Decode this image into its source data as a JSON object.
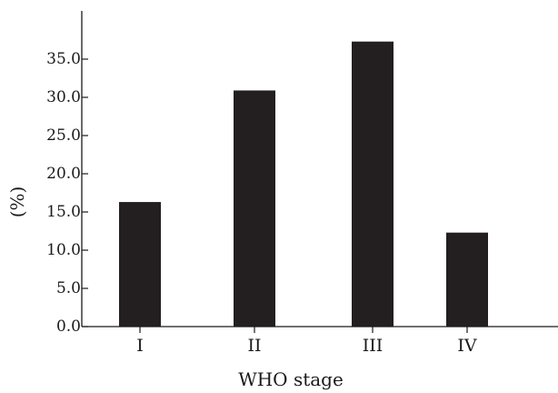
{
  "chart_data": {
    "type": "bar",
    "title": "",
    "xlabel": "WHO stage",
    "ylabel": "(%)",
    "categories": [
      "I",
      "II",
      "III",
      "IV"
    ],
    "values": [
      16.3,
      30.9,
      37.3,
      12.3
    ],
    "ylim": [
      0,
      40
    ],
    "yticks": [
      {
        "value": 0,
        "label": "0.0"
      },
      {
        "value": 5,
        "label": "5.0"
      },
      {
        "value": 10,
        "label": "10.0"
      },
      {
        "value": 15,
        "label": "15.0"
      },
      {
        "value": 20,
        "label": "20.0"
      },
      {
        "value": 25,
        "label": "25.0"
      },
      {
        "value": 30,
        "label": "30.0"
      },
      {
        "value": 35,
        "label": "35.0"
      }
    ],
    "grid": false,
    "legend": "none",
    "bar_color": "#231f20",
    "axis_color": "#1a1a1a"
  }
}
